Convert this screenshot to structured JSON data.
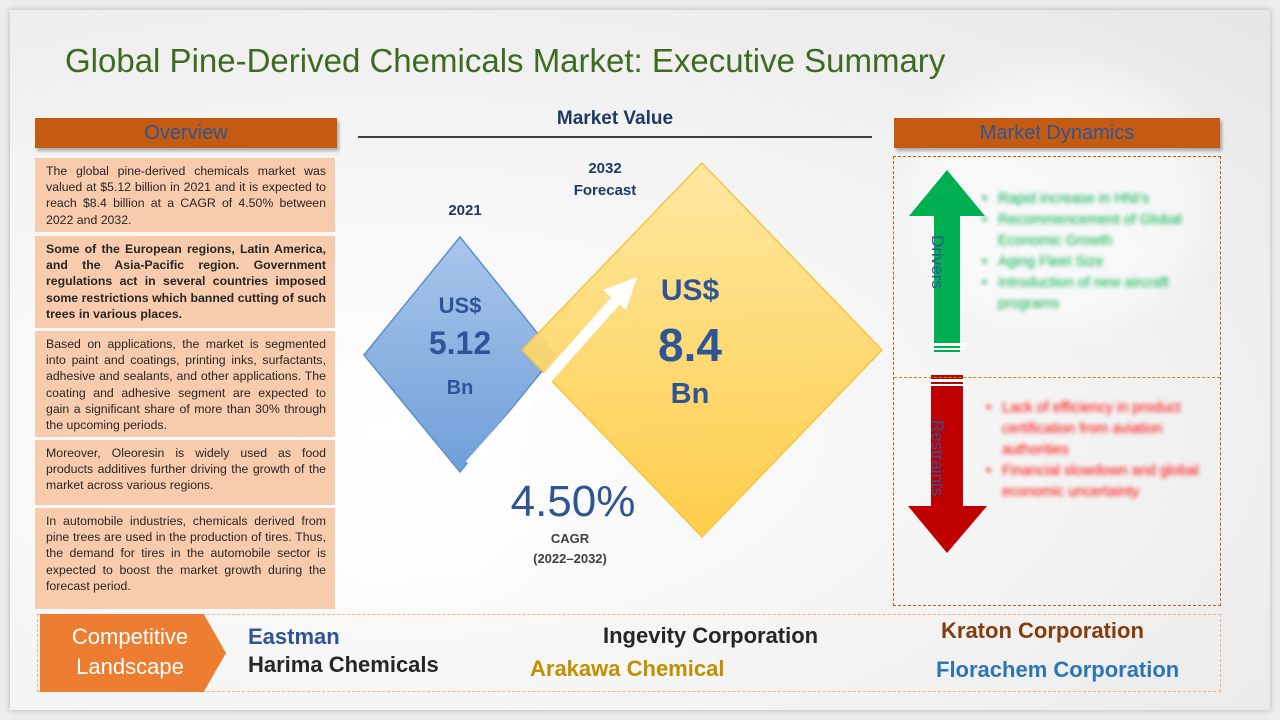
{
  "title": "Global Pine-Derived Chemicals Market: Executive Summary",
  "overview": {
    "header": "Overview",
    "paragraphs": [
      "The global pine-derived chemicals market was valued at $5.12 billion in 2021 and it is expected to reach $8.4 billion at a CAGR of 4.50% between 2022 and 2032.",
      "Some of the European regions, Latin America, and the Asia-Pacific region. Government regulations act in several countries imposed some restrictions which banned cutting of such trees in various places.",
      "Based on applications, the market is segmented into paint and coatings, printing inks, surfactants, adhesive and sealants, and other applications. The coating and adhesive segment are expected to gain a significant share of more than 30% through the upcoming periods.",
      "Moreover, Oleoresin is widely used as food products additives further driving the growth of the market across various regions.",
      "In automobile industries, chemicals derived from pine trees are used in the production of tires. Thus, the demand for tires in the automobile sector is expected to boost the market growth during the forecast period."
    ]
  },
  "market_value": {
    "title": "Market Value",
    "y2021": {
      "year": "2021",
      "currency": "US$",
      "value": "5.12",
      "unit": "Bn",
      "color": "#8eb4e3"
    },
    "y2032": {
      "year": "2032",
      "forecast": "Forecast",
      "currency": "US$",
      "value": "8.4",
      "unit": "Bn",
      "color": "#ffd966"
    },
    "cagr": {
      "value": "4.50%",
      "label": "CAGR",
      "period": "(2022–2032)"
    }
  },
  "dynamics": {
    "header": "Market Dynamics",
    "drivers_label": "Drivers",
    "restraints_label": "Restraints",
    "drivers": [
      "Rapid increase in HNI's",
      "Recommencement of Global Economic Growth",
      "Aging Fleet Size",
      "Introduction of new aircraft programs"
    ],
    "restraints": [
      "Lack of efficiency in product certification from aviation authorities",
      "Financial slowdown and global economic uncertainty"
    ],
    "colors": {
      "drivers": "#00b050",
      "restraints": "#c00000"
    }
  },
  "competitive": {
    "label_line1": "Competitive",
    "label_line2": "Landscape",
    "companies": {
      "eastman": "Eastman",
      "harima": "Harima Chemicals",
      "ingevity": "Ingevity Corporation",
      "arakawa": "Arakawa Chemical",
      "kraton": "Kraton Corporation",
      "florachem": "Florachem Corporation"
    }
  }
}
